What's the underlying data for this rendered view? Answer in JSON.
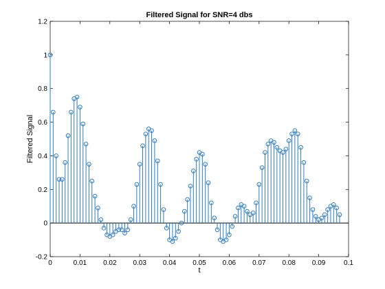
{
  "chart_data": {
    "type": "stem",
    "title": "Filtered Signal for SNR=4 dbs",
    "xlabel": "t",
    "ylabel": "Filtered Signal",
    "xlim": [
      0,
      0.1
    ],
    "ylim": [
      -0.2,
      1.2
    ],
    "xticks": [
      "0",
      "0.01",
      "0.02",
      "0.03",
      "0.04",
      "0.05",
      "0.06",
      "0.07",
      "0.08",
      "0.09",
      "0.1"
    ],
    "yticks": [
      "-0.2",
      "0",
      "0.2",
      "0.4",
      "0.6",
      "0.8",
      "1",
      "1.2"
    ],
    "grid": false,
    "colors": {
      "series": "#2f7bbf",
      "baseline": "#000000"
    },
    "series": [
      {
        "x_start": 0,
        "x_step": 0.001,
        "values": [
          1.0,
          0.66,
          0.4,
          0.26,
          0.26,
          0.36,
          0.52,
          0.66,
          0.74,
          0.75,
          0.69,
          0.59,
          0.47,
          0.35,
          0.25,
          0.16,
          0.09,
          0.02,
          -0.03,
          -0.07,
          -0.08,
          -0.07,
          -0.05,
          -0.04,
          -0.04,
          -0.06,
          -0.04,
          0.02,
          0.1,
          0.23,
          0.35,
          0.46,
          0.53,
          0.56,
          0.55,
          0.49,
          0.37,
          0.23,
          0.08,
          -0.03,
          -0.1,
          -0.11,
          -0.09,
          -0.05,
          0.0,
          0.07,
          0.14,
          0.22,
          0.31,
          0.38,
          0.42,
          0.41,
          0.35,
          0.24,
          0.12,
          0.03,
          -0.04,
          -0.1,
          -0.11,
          -0.1,
          -0.07,
          -0.02,
          0.04,
          0.09,
          0.11,
          0.1,
          0.07,
          0.05,
          0.06,
          0.12,
          0.23,
          0.33,
          0.42,
          0.47,
          0.49,
          0.48,
          0.45,
          0.43,
          0.42,
          0.44,
          0.49,
          0.53,
          0.55,
          0.53,
          0.45,
          0.36,
          0.25,
          0.15,
          0.08,
          0.04,
          0.02,
          0.03,
          0.05,
          0.08,
          0.1,
          0.11,
          0.09,
          0.05
        ]
      }
    ]
  }
}
